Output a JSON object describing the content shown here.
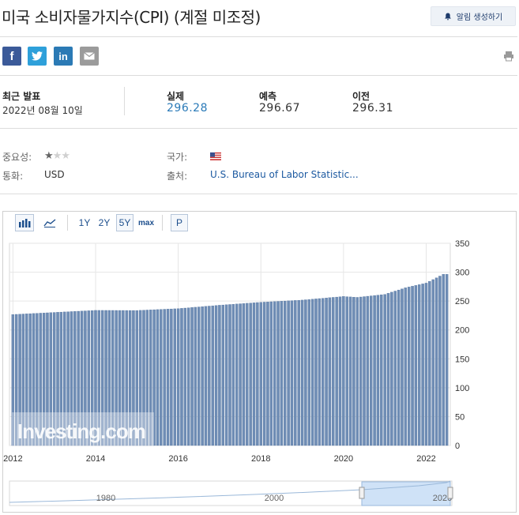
{
  "header": {
    "title": "미국 소비자물가지수(CPI) (계절 미조정)",
    "alert_button_label": "알림 생성하기"
  },
  "share": {
    "facebook_label": "f",
    "twitter_label": "t",
    "linkedin_label": "in"
  },
  "release": {
    "latest_label": "최근 발표",
    "latest_date": "2022년 08월 10일",
    "actual_label": "실제",
    "actual_value": "296.28",
    "forecast_label": "예측",
    "forecast_value": "296.67",
    "previous_label": "이전",
    "previous_value": "296.31"
  },
  "meta": {
    "importance_label": "중요성:",
    "importance_stars": 1,
    "importance_max": 3,
    "country_label": "국가:",
    "currency_label": "통화:",
    "currency_value": "USD",
    "source_label": "출처:",
    "source_value": "U.S. Bureau of Labor Statistic..."
  },
  "toolbar": {
    "range_1y": "1Y",
    "range_2y": "2Y",
    "range_5y": "5Y",
    "range_max": "max",
    "p_label": "P",
    "selected_range": "5Y"
  },
  "colors": {
    "bar": "#6f8db5",
    "bar_edge": "#4b6d99",
    "accent_blue": "#2a7ab8"
  },
  "chart_data": {
    "type": "bar",
    "x_start": "2012-01",
    "x_end": "2022-07",
    "x_ticks": [
      "2012",
      "2014",
      "2016",
      "2018",
      "2020",
      "2022"
    ],
    "y_ticks": [
      "0",
      "50",
      "100",
      "150",
      "200",
      "250",
      "300",
      "350"
    ],
    "ylim": [
      0,
      350
    ],
    "grid": true,
    "anchors": [
      {
        "date": "2012-01",
        "value": 226.7
      },
      {
        "date": "2013-01",
        "value": 230.3
      },
      {
        "date": "2014-01",
        "value": 233.9
      },
      {
        "date": "2015-01",
        "value": 233.7
      },
      {
        "date": "2016-01",
        "value": 236.9
      },
      {
        "date": "2017-01",
        "value": 242.8
      },
      {
        "date": "2018-01",
        "value": 247.9
      },
      {
        "date": "2019-01",
        "value": 251.7
      },
      {
        "date": "2020-01",
        "value": 257.97
      },
      {
        "date": "2020-05",
        "value": 256.4
      },
      {
        "date": "2021-01",
        "value": 261.6
      },
      {
        "date": "2021-07",
        "value": 273.0
      },
      {
        "date": "2022-01",
        "value": 281.1
      },
      {
        "date": "2022-06",
        "value": 296.31
      },
      {
        "date": "2022-07",
        "value": 296.28
      }
    ],
    "watermark": "Investing.com",
    "navigator_ticks": [
      "1980",
      "2000",
      "2020"
    ]
  }
}
